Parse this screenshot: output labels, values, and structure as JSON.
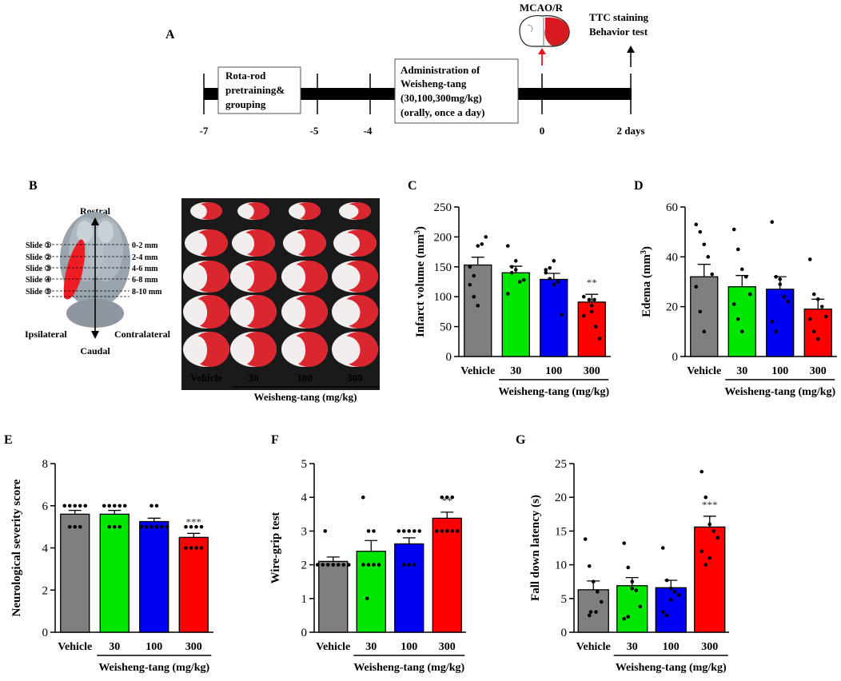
{
  "panel_letters": {
    "A": "A",
    "B": "B",
    "C": "C",
    "D": "D",
    "E": "E",
    "F": "F",
    "G": "G"
  },
  "timeline": {
    "mcao_label": "MCAO/R",
    "ttc_label_1": "TTC staining",
    "ttc_label_2": "Behavior test",
    "box1_lines": [
      "Rota-rod",
      "pretraining&",
      "grouping"
    ],
    "box2_lines": [
      "Administration of",
      "Weisheng-tang",
      "(30,100,300mg/kg)",
      "(orally, once a day)"
    ],
    "ticks": [
      "-7",
      "-5",
      "-4",
      "0",
      "2 days"
    ],
    "colors": {
      "line": "#000000",
      "brain_red": "#d71920",
      "arrow_red": "#e8141b"
    }
  },
  "brain": {
    "rostral": "Rostral",
    "caudal": "Caudal",
    "ipsilateral": "Ipsilateral",
    "contralateral": "Contralateral",
    "slides": [
      "Slide ①",
      "Slide ②",
      "Slide ③",
      "Slide ④",
      "Slide ⑤"
    ],
    "ranges": [
      "0-2 mm",
      "2-4 mm",
      "4-6 mm",
      "6-8 mm",
      "8-10 mm"
    ],
    "colors": {
      "brain": "#9aa4ad",
      "infarct": "#ee1c25"
    }
  },
  "photo": {
    "group_labels": [
      "Vehicle",
      "30",
      "100",
      "300"
    ],
    "xlabel": "Weisheng-tang (mg/kg)",
    "colors": {
      "background": "#1a1a1a",
      "tissue_red": "#d9262f",
      "tissue_white": "#f2eeee"
    }
  },
  "chart_data": [
    {
      "type": "bar",
      "panel": "C",
      "categories": [
        "Vehicle",
        "30",
        "100",
        "300"
      ],
      "values": [
        153,
        140,
        129,
        91
      ],
      "sem": [
        13,
        11,
        10,
        13
      ],
      "points": [
        [
          120,
          135,
          185,
          188,
          200,
          150,
          100,
          85
        ],
        [
          185,
          150,
          145,
          125,
          128,
          105,
          140,
          160
        ],
        [
          145,
          148,
          120,
          125,
          70,
          140,
          130,
          160
        ],
        [
          100,
          95,
          85,
          50,
          30,
          68,
          95,
          75
        ]
      ],
      "significance": [
        "",
        "",
        "",
        "**"
      ],
      "ylabel": "Infarct volume (mm3)",
      "xlabel": "Weisheng-tang (mg/kg)",
      "ylim": [
        0,
        250
      ],
      "yticks": [
        0,
        50,
        100,
        150,
        200,
        250
      ],
      "colors": [
        "#7f7f7f",
        "#00e600",
        "#0000f5",
        "#ff0000"
      ]
    },
    {
      "type": "bar",
      "panel": "D",
      "categories": [
        "Vehicle",
        "30",
        "100",
        "300"
      ],
      "values": [
        32,
        28,
        27,
        19
      ],
      "sem": [
        5,
        4.5,
        5,
        4
      ],
      "points": [
        [
          53,
          50,
          45,
          40,
          33,
          28,
          18,
          10
        ],
        [
          51,
          43,
          35,
          32,
          25,
          21,
          15,
          10
        ],
        [
          54,
          32,
          29,
          24,
          22,
          14,
          10,
          31
        ],
        [
          39,
          25,
          23,
          20,
          16,
          15,
          10,
          7
        ]
      ],
      "significance": [
        "",
        "",
        "",
        ""
      ],
      "ylabel": "Edema (mm3)",
      "xlabel": "Weisheng-tang (mg/kg)",
      "ylim": [
        0,
        60
      ],
      "yticks": [
        0,
        20,
        40,
        60
      ],
      "colors": [
        "#7f7f7f",
        "#00e600",
        "#0000f5",
        "#ff0000"
      ]
    },
    {
      "type": "bar",
      "panel": "E",
      "categories": [
        "Vehicle",
        "30",
        "100",
        "300"
      ],
      "values": [
        5.6,
        5.6,
        5.25,
        4.5
      ],
      "sem": [
        0.18,
        0.18,
        0.16,
        0.19
      ],
      "points": [
        [
          6,
          6,
          6,
          6,
          6,
          5,
          5,
          5
        ],
        [
          6,
          6,
          6,
          6,
          6,
          5,
          5,
          5
        ],
        [
          6,
          6,
          5,
          5,
          5,
          5,
          5,
          5
        ],
        [
          5,
          5,
          5,
          5,
          4,
          4,
          4,
          4
        ]
      ],
      "significance": [
        "",
        "",
        "",
        "***"
      ],
      "ylabel": "Neurological severity score",
      "xlabel": "Weisheng-tang (mg/kg)",
      "ylim": [
        0,
        8
      ],
      "yticks": [
        0,
        2,
        4,
        6,
        8
      ],
      "colors": [
        "#7f7f7f",
        "#00e600",
        "#0000f5",
        "#ff0000"
      ]
    },
    {
      "type": "bar",
      "panel": "F",
      "categories": [
        "Vehicle",
        "30",
        "100",
        "300"
      ],
      "values": [
        2.1,
        2.4,
        2.62,
        3.38
      ],
      "sem": [
        0.13,
        0.32,
        0.18,
        0.18
      ],
      "points": [
        [
          3,
          2,
          2,
          2,
          2,
          2,
          2,
          2
        ],
        [
          4,
          3,
          3,
          2,
          2,
          2,
          1,
          2
        ],
        [
          3,
          3,
          3,
          3,
          3,
          2,
          2,
          2
        ],
        [
          4,
          4,
          4,
          3,
          3,
          3,
          3,
          3
        ]
      ],
      "significance": [
        "",
        "",
        "",
        "**"
      ],
      "ylabel": "Wire-grip test",
      "xlabel": "Weisheng-tang (mg/kg)",
      "ylim": [
        0,
        5
      ],
      "yticks": [
        0,
        1,
        2,
        3,
        4,
        5
      ],
      "colors": [
        "#7f7f7f",
        "#00e600",
        "#0000f5",
        "#ff0000"
      ]
    },
    {
      "type": "bar",
      "panel": "G",
      "categories": [
        "Vehicle",
        "30",
        "100",
        "300"
      ],
      "values": [
        6.3,
        6.9,
        6.6,
        15.6
      ],
      "sem": [
        1.3,
        1.2,
        1.1,
        1.6
      ],
      "points": [
        [
          13.8,
          9.8,
          7.5,
          6,
          4.5,
          3,
          2.5,
          3
        ],
        [
          13.2,
          9.6,
          7.5,
          6.2,
          3.8,
          2,
          2.3,
          6.5
        ],
        [
          12.5,
          7.7,
          6.5,
          6,
          5.5,
          3,
          2.5,
          4.8
        ],
        [
          23.8,
          20,
          16,
          15,
          14,
          12,
          10,
          11
        ]
      ],
      "significance": [
        "",
        "",
        "",
        "***"
      ],
      "ylabel": "Fall down latency (s)",
      "xlabel": "Weisheng-tang (mg/kg)",
      "ylim": [
        0,
        25
      ],
      "yticks": [
        0,
        5,
        10,
        15,
        20,
        25
      ],
      "colors": [
        "#7f7f7f",
        "#00e600",
        "#0000f5",
        "#ff0000"
      ]
    }
  ]
}
